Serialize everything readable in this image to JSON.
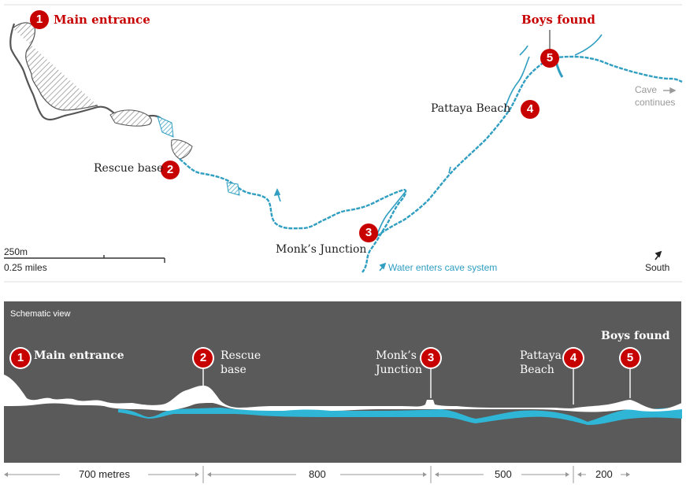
{
  "map": {
    "labels": {
      "main_entrance": "Main entrance",
      "boys_found": "Boys found",
      "rescue_base": "Rescue base",
      "pattaya_beach": "Pattaya Beach",
      "monks_junction": "Monk’s Junction",
      "cave_continues_1": "Cave",
      "cave_continues_2": "continues",
      "water_enters": "Water enters cave system",
      "south": "South"
    },
    "scale": {
      "metres": "250m",
      "miles": "0.25 miles"
    },
    "badges": [
      "1",
      "2",
      "3",
      "4",
      "5"
    ]
  },
  "schematic": {
    "title": "Schematic view",
    "labels": {
      "main_entrance": "Main entrance",
      "rescue_1": "Rescue",
      "rescue_2": "base",
      "monks_1": "Monk’s",
      "monks_2": "Junction",
      "pattaya_1": "Pattaya",
      "pattaya_2": "Beach",
      "boys_found": "Boys found"
    },
    "distances": [
      "700 metres",
      "800",
      "500",
      "200"
    ]
  },
  "colors": {
    "accent_red": "#c70000",
    "water_blue": "#2f9ec1",
    "schematic_bg": "#5a5a5a",
    "cave_grey": "#555555"
  }
}
